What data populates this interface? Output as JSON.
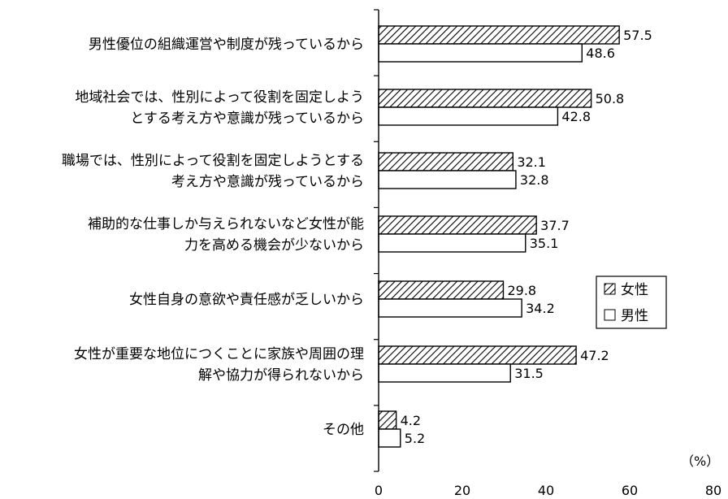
{
  "chart_data": {
    "type": "bar",
    "orientation": "horizontal",
    "categories": [
      [
        "男性優位の組織運営や制度が残っているから"
      ],
      [
        "地域社会では、性別によって役割を固定しよう",
        "とする考え方や意識が残っているから"
      ],
      [
        "職場では、性別によって役割を固定しようとする",
        "考え方や意識が残っているから"
      ],
      [
        "補助的な仕事しか与えられないなど女性が能",
        "力を高める機会が少ないから"
      ],
      [
        "女性自身の意欲や責任感が乏しいから"
      ],
      [
        "女性が重要な地位につくことに家族や周囲の理",
        "解や協力が得られないから"
      ],
      [
        "その他"
      ]
    ],
    "series": [
      {
        "name": "女性",
        "values": [
          57.5,
          50.8,
          32.1,
          37.7,
          29.8,
          47.2,
          4.2
        ],
        "pattern": "hatched"
      },
      {
        "name": "男性",
        "values": [
          48.6,
          42.8,
          32.8,
          35.1,
          34.2,
          31.5,
          5.2
        ],
        "pattern": "white"
      }
    ],
    "value_labels": {
      "女性": [
        "57.5",
        "50.8",
        "32.1",
        "37.7",
        "29.8",
        "47.2",
        "4.2"
      ],
      "男性": [
        "48.6",
        "42.8",
        "32.8",
        "35.1",
        "34.2",
        "31.5",
        "5.2"
      ]
    },
    "xlim": [
      0,
      80
    ],
    "xticks": [
      "0",
      "20",
      "40",
      "60",
      "80"
    ],
    "unit": "（%）",
    "legend": {
      "placement": "right-middle",
      "items": [
        "女性",
        "男性"
      ]
    },
    "grid": false,
    "colors": {
      "bar_stroke": "#000000",
      "bar_fill_male": "#ffffff",
      "hatch": "#000000"
    }
  }
}
